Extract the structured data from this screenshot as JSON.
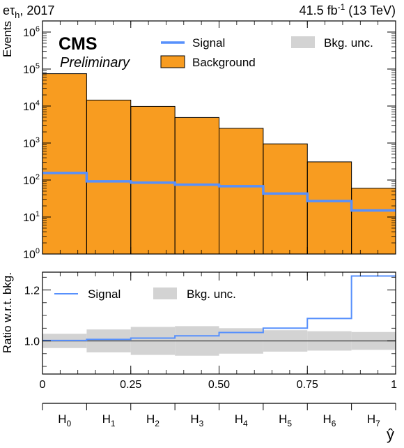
{
  "header": {
    "left_label": "eτh, 2017",
    "left_main": "eτ",
    "left_sub": "h",
    "left_tail": ", 2017",
    "right_label": "41.5 fb-1 (13 TeV)",
    "right_main": "41.5 fb",
    "right_sup": "-1",
    "right_tail": " (13 TeV)",
    "experiment": "CMS",
    "status": "Preliminary"
  },
  "colors": {
    "background_fill": "#f89c20",
    "signal": "#5790fc",
    "uncertainty": "#d3d3d3",
    "edge": "#000000",
    "unity_line": "#555555"
  },
  "chart_data": [
    {
      "type": "bar",
      "title": "",
      "xlabel": "",
      "ylabel": "Events",
      "yscale": "log",
      "ylim": [
        1,
        2000000
      ],
      "y_ticks": [
        {
          "base": "10",
          "exp": "0",
          "value": 1
        },
        {
          "base": "10",
          "exp": "1",
          "value": 10
        },
        {
          "base": "10",
          "exp": "2",
          "value": 100
        },
        {
          "base": "10",
          "exp": "3",
          "value": 1000
        },
        {
          "base": "10",
          "exp": "4",
          "value": 10000
        },
        {
          "base": "10",
          "exp": "5",
          "value": 100000
        },
        {
          "base": "10",
          "exp": "6",
          "value": 1000000
        }
      ],
      "bin_edges": [
        0,
        0.125,
        0.25,
        0.375,
        0.5,
        0.625,
        0.75,
        0.875,
        1.0
      ],
      "series": [
        {
          "name": "Background",
          "style": "filled-stepped",
          "values": [
            75000,
            14500,
            9800,
            4900,
            2500,
            950,
            310,
            60
          ]
        },
        {
          "name": "Signal",
          "style": "step-line",
          "values": [
            155,
            92,
            85,
            75,
            68,
            43,
            27,
            15
          ]
        }
      ],
      "legend": {
        "placement": "top-right",
        "signal_label": "Signal",
        "background_label": "Background",
        "unc_label": "Bkg. unc."
      }
    },
    {
      "type": "line",
      "title": "",
      "ylabel": "Ratio w.r.t. bkg.",
      "ylim": [
        0.87,
        1.27
      ],
      "y_ticks": [
        {
          "label": "1.0",
          "value": 1.0
        },
        {
          "label": "1.2",
          "value": 1.2
        }
      ],
      "xlim": [
        0,
        1
      ],
      "x_ticks": [
        {
          "label": "0",
          "value": 0
        },
        {
          "label": "0.25",
          "value": 0.25
        },
        {
          "label": "0.50",
          "value": 0.5
        },
        {
          "label": "0.75",
          "value": 0.75
        },
        {
          "label": "1",
          "value": 1
        }
      ],
      "bin_edges": [
        0,
        0.125,
        0.25,
        0.375,
        0.5,
        0.625,
        0.75,
        0.875,
        1.0
      ],
      "series": [
        {
          "name": "Signal",
          "style": "step-line",
          "values": [
            1.002,
            1.006,
            1.011,
            1.02,
            1.033,
            1.05,
            1.088,
            1.255
          ]
        },
        {
          "name": "Bkg. unc.",
          "style": "band",
          "half_width": [
            0.028,
            0.045,
            0.055,
            0.058,
            0.05,
            0.042,
            0.038,
            0.035
          ]
        }
      ],
      "legend": {
        "placement": "top-left",
        "signal_label": "Signal",
        "unc_label": "Bkg. unc."
      }
    }
  ],
  "category_axis": {
    "xlabel": "ŷ",
    "categories": [
      {
        "main": "H",
        "sub": "0"
      },
      {
        "main": "H",
        "sub": "1"
      },
      {
        "main": "H",
        "sub": "2"
      },
      {
        "main": "H",
        "sub": "3"
      },
      {
        "main": "H",
        "sub": "4"
      },
      {
        "main": "H",
        "sub": "5"
      },
      {
        "main": "H",
        "sub": "6"
      },
      {
        "main": "H",
        "sub": "7"
      }
    ]
  }
}
